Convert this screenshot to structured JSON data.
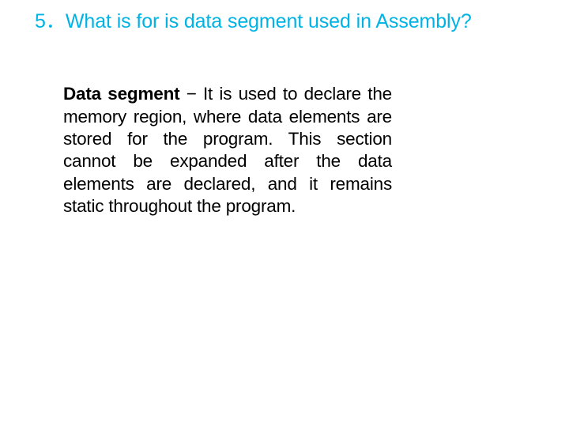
{
  "slide": {
    "title": {
      "number": "5．",
      "text": "What is for is data segment used in Assembly?",
      "color": "#00b3e3",
      "fontsize": 25
    },
    "body": {
      "bold_term": "Data segment",
      "definition": " − It is used to declare the memory region, where data elements are stored for the program. This section cannot be expanded after the data elements are declared, and it remains static throughout the program.",
      "text_color": "#000000",
      "fontsize": 22.5
    },
    "background_color": "#ffffff"
  }
}
